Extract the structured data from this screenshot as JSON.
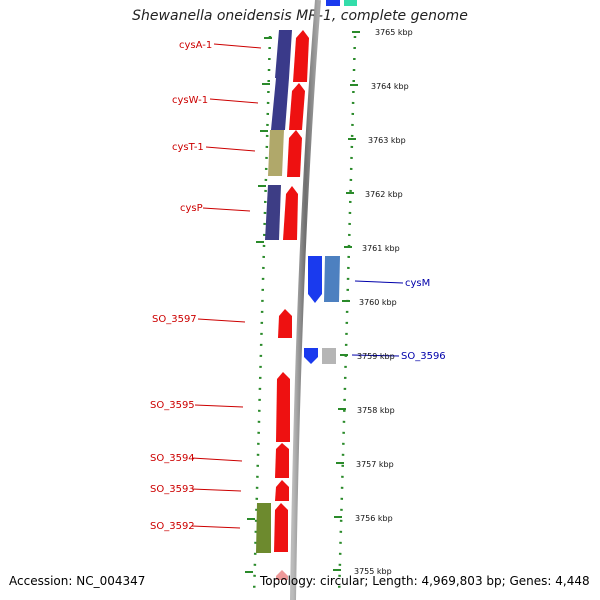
{
  "title": "Shewanella oneidensis MR-1, complete genome",
  "footer": {
    "accession": "Accession: NC_004347",
    "genome_info": "Topology: circular; Length: 4,969,803 bp; Genes: 4,448"
  },
  "ticks": [
    "3765 kbp",
    "3764 kbp",
    "3763 kbp",
    "3762 kbp",
    "3761 kbp",
    "3760 kbp",
    "3759 kbp",
    "3758 kbp",
    "3757 kbp",
    "3756 kbp",
    "3755 kbp"
  ],
  "left_labels": [
    "cysA-1",
    "cysW-1",
    "cysT-1",
    "cysP",
    "SO_3597",
    "SO_3595",
    "SO_3594",
    "SO_3593",
    "SO_3592"
  ],
  "right_labels": [
    "cysM",
    "SO_3596"
  ],
  "colors": {
    "left_label": "#cc0000",
    "right_label": "#0000aa",
    "backbone": "#8c8c8c",
    "dots": "#2a8a2a",
    "red_feature": "#ee1111",
    "blue_feature": "#1a3aee"
  }
}
